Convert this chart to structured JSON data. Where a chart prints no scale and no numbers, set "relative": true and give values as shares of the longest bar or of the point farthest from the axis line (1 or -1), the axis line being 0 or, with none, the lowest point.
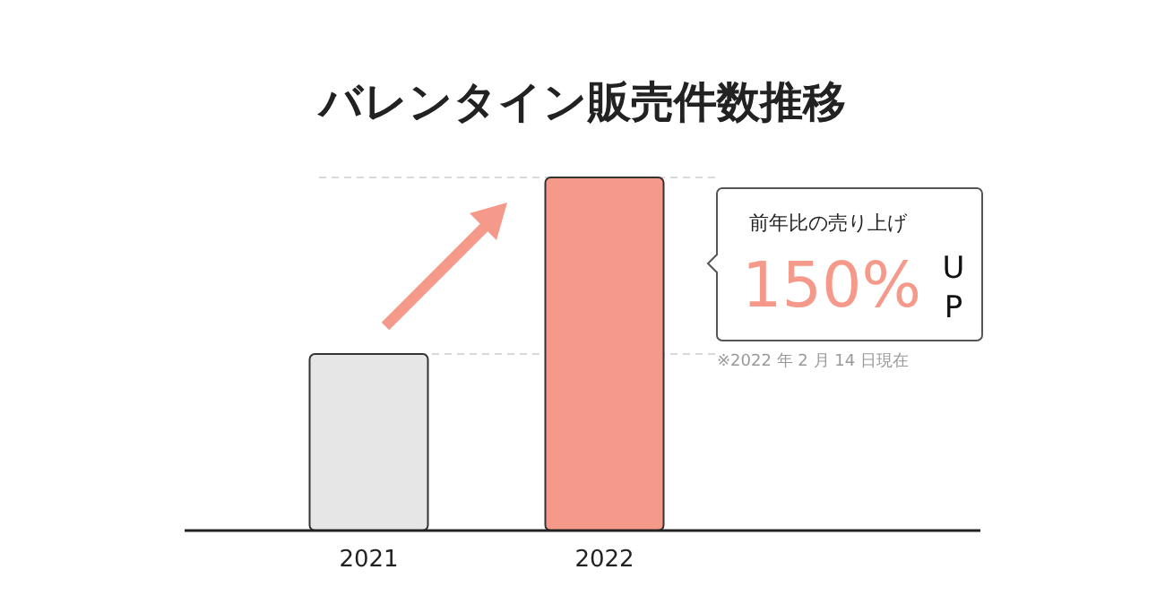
{
  "chart_data": {
    "type": "bar",
    "title": "バレンタイン販売件数推移",
    "relative": true,
    "categories": [
      "2021",
      "2022"
    ],
    "values": [
      0.5,
      1
    ],
    "colors": [
      "#e6e6e6",
      "#f59a8a"
    ],
    "ref_lines": [
      {
        "axis": "y",
        "value": 1,
        "color": "#d9d9d9",
        "line_style": "dashed"
      },
      {
        "axis": "y",
        "value": 0.5,
        "color": "#d9d9d9",
        "line_style": "dashed"
      }
    ],
    "annotations": [
      "前年比の売り上げ",
      "150%",
      "UP",
      "※2022 年 2 月 14 日現在"
    ]
  }
}
